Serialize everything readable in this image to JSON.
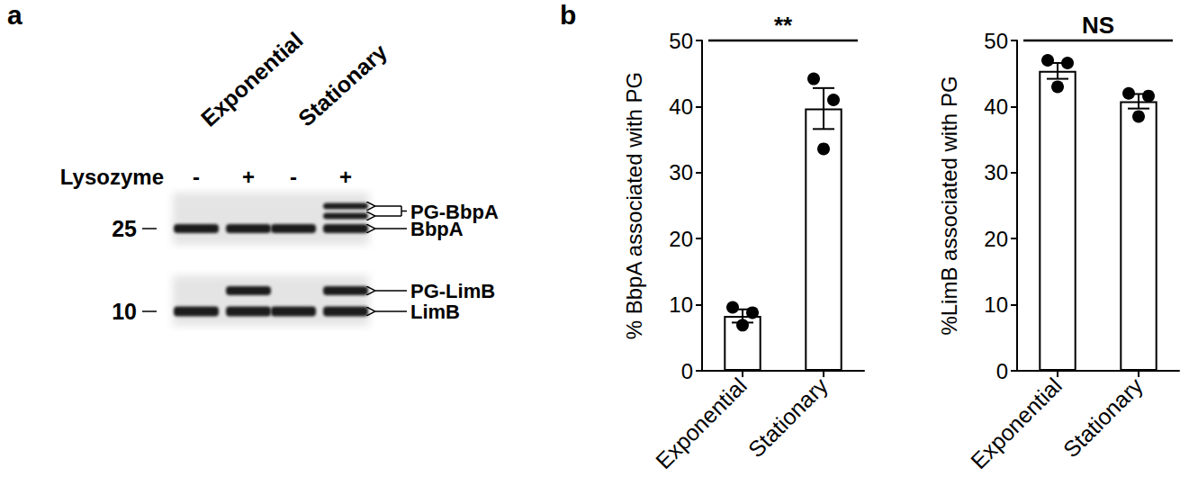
{
  "panel_labels": [
    "a",
    "b"
  ],
  "blot": {
    "groups": [
      "Exponential",
      "Stationary"
    ],
    "treatment_label": "Lysozyme",
    "treatment": [
      "-",
      "+",
      "-",
      "+"
    ],
    "markers": [
      25,
      10
    ],
    "bands": [
      {
        "label": "PG-BbpA",
        "lanes": [
          false,
          false,
          false,
          true
        ]
      },
      {
        "label": "BbpA",
        "lanes": [
          true,
          true,
          true,
          true
        ]
      },
      {
        "label": "PG-LimB",
        "lanes": [
          false,
          true,
          false,
          true
        ]
      },
      {
        "label": "LimB",
        "lanes": [
          true,
          true,
          true,
          true
        ]
      }
    ]
  },
  "chart_data": [
    {
      "type": "bar",
      "y_label": "% BbpA associated with PG",
      "categories": [
        "Exponential",
        "Stationary"
      ],
      "values": [
        8.3,
        39.7
      ],
      "errors": [
        1.0,
        3.1
      ],
      "points": [
        [
          9.6,
          8.8,
          6.9
        ],
        [
          44.2,
          41.0,
          33.6
        ]
      ],
      "color": "#ffffff",
      "ylim": [
        0,
        50
      ],
      "yticks": [
        0,
        10,
        20,
        30,
        40,
        50
      ],
      "annotations": [
        {
          "text": "**"
        }
      ]
    },
    {
      "type": "bar",
      "y_label": "%LimB associated with PG",
      "categories": [
        "Exponential",
        "Stationary"
      ],
      "values": [
        45.4,
        40.8
      ],
      "errors": [
        1.2,
        1.1
      ],
      "points": [
        [
          47.0,
          46.6,
          43.0
        ],
        [
          42.0,
          41.6,
          38.5
        ]
      ],
      "color": "#ffffff",
      "ylim": [
        0,
        50
      ],
      "yticks": [
        0,
        10,
        20,
        30,
        40,
        50
      ],
      "annotations": [
        {
          "text": "NS"
        }
      ]
    }
  ]
}
